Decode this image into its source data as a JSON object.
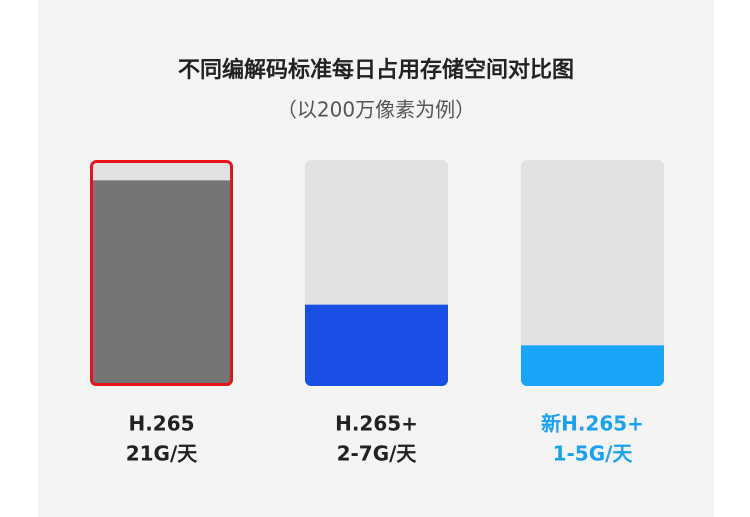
{
  "chart_data": {
    "type": "bar",
    "title": "不同编解码标准每日占用存储空间对比图",
    "subtitle": "（以200万像素为例）",
    "categories": [
      "H.265",
      "H.265+",
      "新H.265+"
    ],
    "capacity_labels": [
      "21G/天",
      "2-7G/天",
      "1-5G/天"
    ],
    "values": [
      91,
      36,
      18
    ],
    "ylim": [
      0,
      100
    ],
    "colors": [
      "#757575",
      "#1a4fe6",
      "#18a4f7"
    ],
    "border_colors": [
      "#e8141c",
      null,
      null
    ],
    "label_colors": [
      "#222222",
      "#222222",
      "#1ba1f0"
    ],
    "track_color": "#e2e2e2"
  }
}
